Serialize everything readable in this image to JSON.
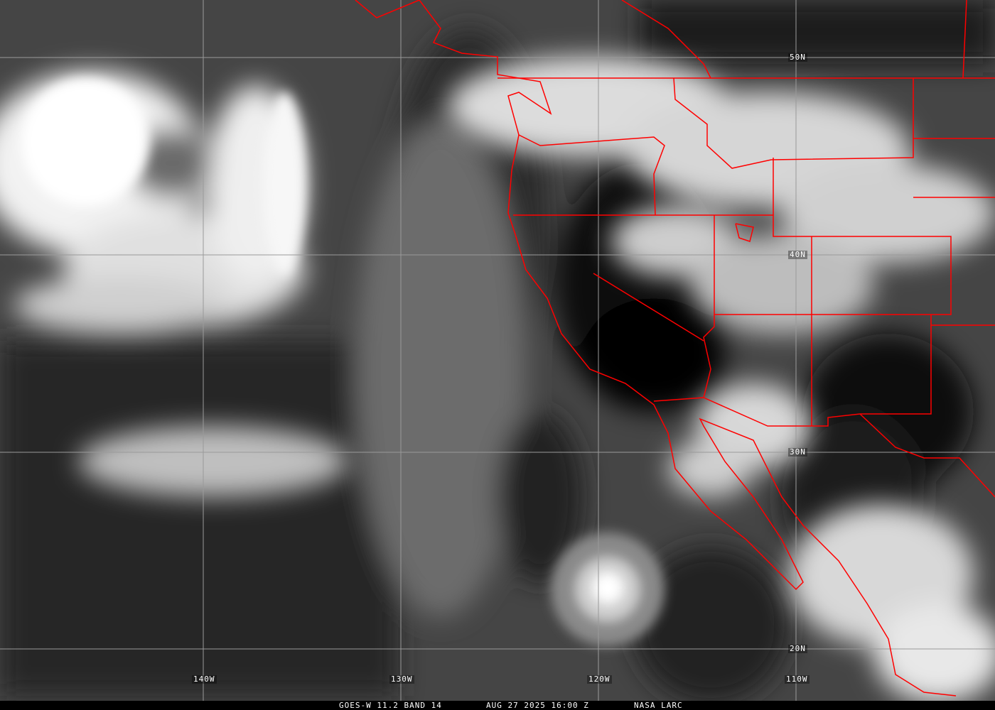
{
  "caption": {
    "satellite_band": "GOES-W 11.2 BAND 14",
    "datetime": "AUG 27 2025 16:00 Z",
    "credit": "NASA LARC"
  },
  "grid": {
    "latitudes": [
      "50N",
      "40N",
      "30N",
      "20N"
    ],
    "longitudes": [
      "140W",
      "130W",
      "120W",
      "110W"
    ]
  },
  "colors": {
    "boundaries": "#ff0000",
    "grid": "#9a9a9a"
  }
}
